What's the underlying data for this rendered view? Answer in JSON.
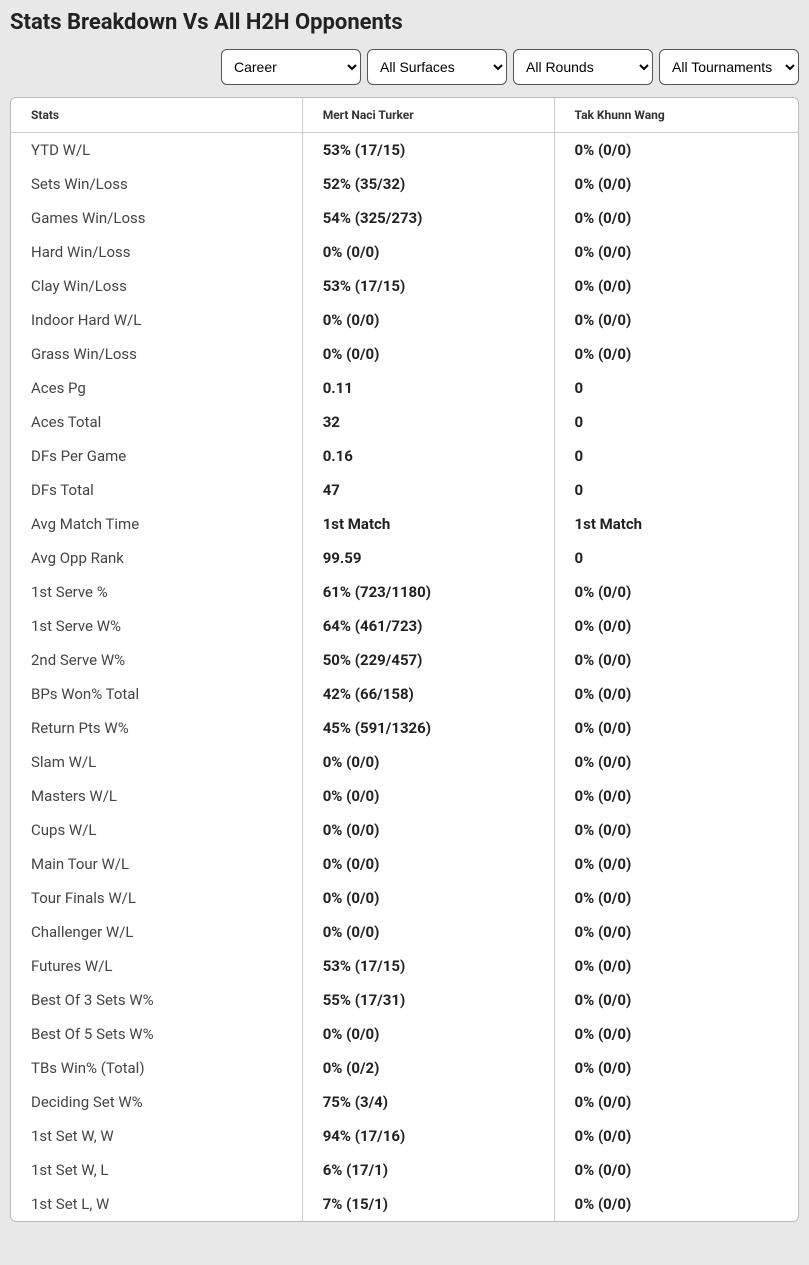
{
  "title": "Stats Breakdown Vs All H2H Opponents",
  "filters": {
    "time": "Career",
    "surface": "All Surfaces",
    "round": "All Rounds",
    "tournament": "All Tournaments"
  },
  "columns": {
    "stats": "Stats",
    "player1": "Mert Naci Turker",
    "player2": "Tak Khunn Wang"
  },
  "rows": [
    {
      "label": "YTD W/L",
      "p1": "53% (17/15)",
      "p2": "0% (0/0)"
    },
    {
      "label": "Sets Win/Loss",
      "p1": "52% (35/32)",
      "p2": "0% (0/0)"
    },
    {
      "label": "Games Win/Loss",
      "p1": "54% (325/273)",
      "p2": "0% (0/0)"
    },
    {
      "label": "Hard Win/Loss",
      "p1": "0% (0/0)",
      "p2": "0% (0/0)"
    },
    {
      "label": "Clay Win/Loss",
      "p1": "53% (17/15)",
      "p2": "0% (0/0)"
    },
    {
      "label": "Indoor Hard W/L",
      "p1": "0% (0/0)",
      "p2": "0% (0/0)"
    },
    {
      "label": "Grass Win/Loss",
      "p1": "0% (0/0)",
      "p2": "0% (0/0)"
    },
    {
      "label": "Aces Pg",
      "p1": "0.11",
      "p2": "0"
    },
    {
      "label": "Aces Total",
      "p1": "32",
      "p2": "0"
    },
    {
      "label": "DFs Per Game",
      "p1": "0.16",
      "p2": "0"
    },
    {
      "label": "DFs Total",
      "p1": "47",
      "p2": "0"
    },
    {
      "label": "Avg Match Time",
      "p1": "1st Match",
      "p2": "1st Match"
    },
    {
      "label": "Avg Opp Rank",
      "p1": "99.59",
      "p2": "0"
    },
    {
      "label": "1st Serve %",
      "p1": "61% (723/1180)",
      "p2": "0% (0/0)"
    },
    {
      "label": "1st Serve W%",
      "p1": "64% (461/723)",
      "p2": "0% (0/0)"
    },
    {
      "label": "2nd Serve W%",
      "p1": "50% (229/457)",
      "p2": "0% (0/0)"
    },
    {
      "label": "BPs Won% Total",
      "p1": "42% (66/158)",
      "p2": "0% (0/0)"
    },
    {
      "label": "Return Pts W%",
      "p1": "45% (591/1326)",
      "p2": "0% (0/0)"
    },
    {
      "label": "Slam W/L",
      "p1": "0% (0/0)",
      "p2": "0% (0/0)"
    },
    {
      "label": "Masters W/L",
      "p1": "0% (0/0)",
      "p2": "0% (0/0)"
    },
    {
      "label": "Cups W/L",
      "p1": "0% (0/0)",
      "p2": "0% (0/0)"
    },
    {
      "label": "Main Tour W/L",
      "p1": "0% (0/0)",
      "p2": "0% (0/0)"
    },
    {
      "label": "Tour Finals W/L",
      "p1": "0% (0/0)",
      "p2": "0% (0/0)"
    },
    {
      "label": "Challenger W/L",
      "p1": "0% (0/0)",
      "p2": "0% (0/0)"
    },
    {
      "label": "Futures W/L",
      "p1": "53% (17/15)",
      "p2": "0% (0/0)"
    },
    {
      "label": "Best Of 3 Sets W%",
      "p1": "55% (17/31)",
      "p2": "0% (0/0)"
    },
    {
      "label": "Best Of 5 Sets W%",
      "p1": "0% (0/0)",
      "p2": "0% (0/0)"
    },
    {
      "label": "TBs Win% (Total)",
      "p1": "0% (0/2)",
      "p2": "0% (0/0)"
    },
    {
      "label": "Deciding Set W%",
      "p1": "75% (3/4)",
      "p2": "0% (0/0)"
    },
    {
      "label": "1st Set W, W",
      "p1": "94% (17/16)",
      "p2": "0% (0/0)"
    },
    {
      "label": "1st Set W, L",
      "p1": "6% (17/1)",
      "p2": "0% (0/0)"
    },
    {
      "label": "1st Set L, W",
      "p1": "7% (15/1)",
      "p2": "0% (0/0)"
    }
  ]
}
